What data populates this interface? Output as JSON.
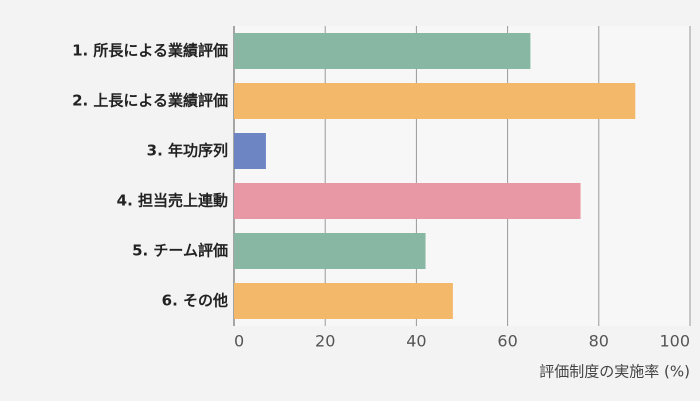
{
  "chart_data": {
    "type": "barh",
    "categories": [
      "1. 所長による業績評価",
      "2. 上長による業績評価",
      "3. 年功序列",
      "4. 担当売上連動",
      "5. チーム評価",
      "6. その他"
    ],
    "values": [
      65,
      88,
      7,
      76,
      42,
      48
    ],
    "colors": [
      "#88b8a4",
      "#f3b86a",
      "#6e85c4",
      "#e898a4",
      "#88b8a4",
      "#f3b86a"
    ],
    "xlim": [
      0,
      100
    ],
    "xticks": [
      0,
      20,
      40,
      60,
      80,
      100
    ],
    "grid": true,
    "x_label": "評価制度の実施率 (%)"
  }
}
